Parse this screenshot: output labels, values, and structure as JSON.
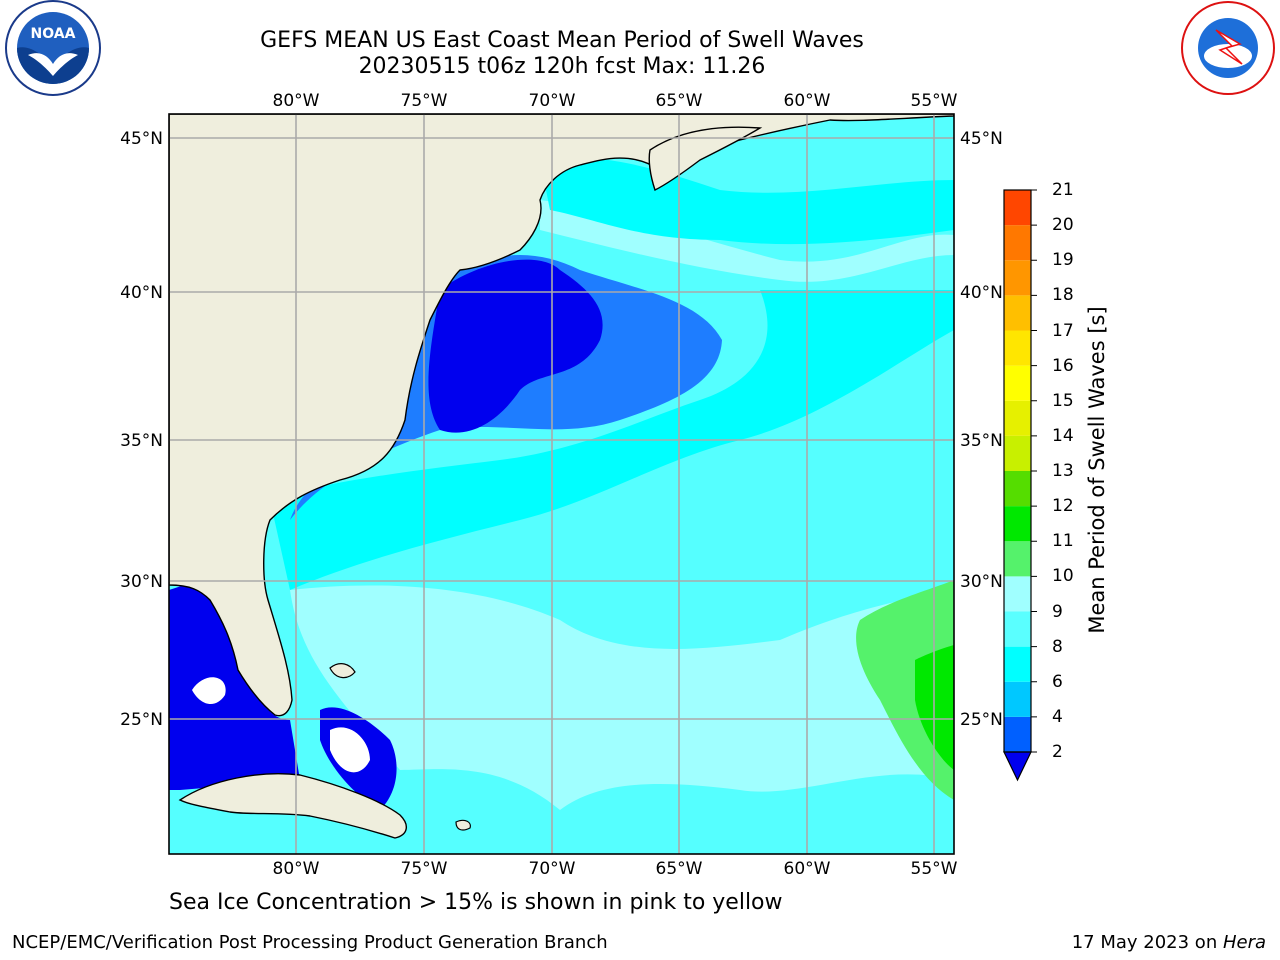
{
  "header": {
    "title_line1": "GEFS MEAN US East Coast Mean Period of Swell Waves",
    "title_line2": "20230515 t06z 120h fcst   Max: 11.26"
  },
  "logos": {
    "left": "noaa-logo",
    "left_text": "NOAA",
    "right": "national-weather-service-logo"
  },
  "map": {
    "longitude_ticks": [
      "80°W",
      "75°W",
      "70°W",
      "65°W",
      "60°W",
      "55°W"
    ],
    "latitude_ticks": [
      "45°N",
      "40°N",
      "35°N",
      "30°N",
      "25°N"
    ],
    "colors": {
      "land": "#efeedd",
      "very_short_period": "#0000ee",
      "short_period": "#1e7dff",
      "medium_period": "#00ffff",
      "long_period": "#55ffff",
      "longer_period": "#a0ffff",
      "green": "#55f26b",
      "bright_green": "#00e800",
      "gridline": "#aaaaaa",
      "no_data": "#ffffff"
    }
  },
  "colorbar": {
    "label": "Mean Period of Swell Waves [s]",
    "levels": [
      "2",
      "4",
      "6",
      "8",
      "9",
      "10",
      "11",
      "12",
      "13",
      "14",
      "15",
      "16",
      "17",
      "18",
      "19",
      "20",
      "21"
    ],
    "colors": [
      "#0060ff",
      "#00c8ff",
      "#00ffff",
      "#5affff",
      "#a0ffff",
      "#55f26b",
      "#00e800",
      "#55dd00",
      "#c8f000",
      "#e6f000",
      "#ffff00",
      "#ffe600",
      "#ffbf00",
      "#ff9600",
      "#ff7800",
      "#ff4600",
      "#ff1400"
    ],
    "under_color": "#0000ee"
  },
  "footer": {
    "note": "Sea Ice Concentration > 15% is shown in pink to yellow",
    "credit": "NCEP/EMC/Verification Post Processing Product Generation Branch",
    "date": "17 May 2023 on ",
    "machine": "Hera"
  }
}
